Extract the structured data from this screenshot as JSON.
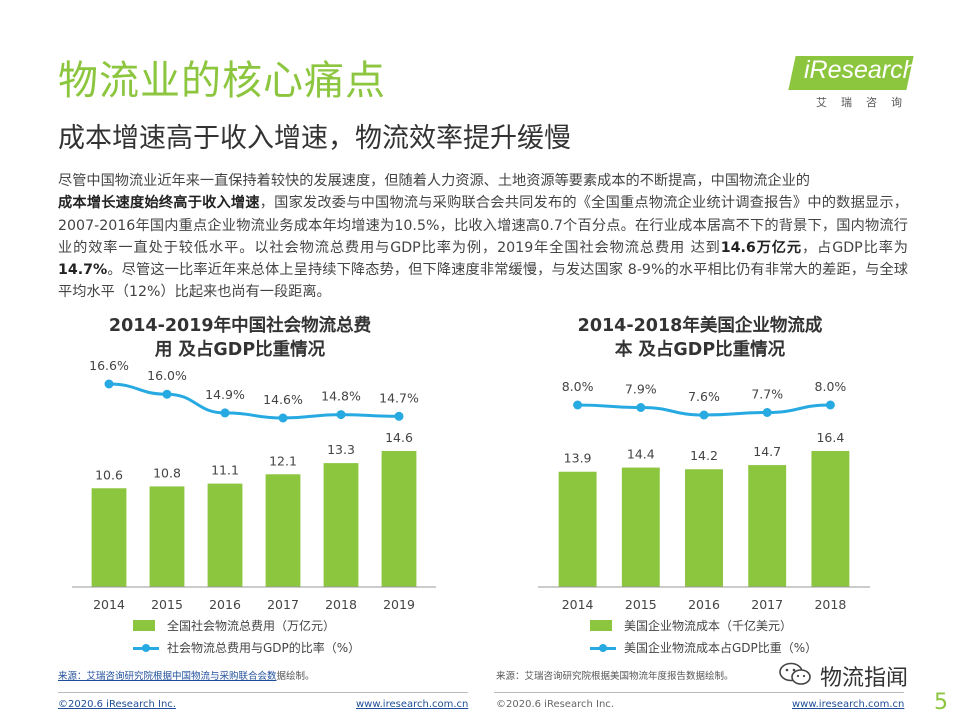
{
  "header": {
    "title": "物流业的核心痛点",
    "subtitle": "成本增速高于收入增速，物流效率提升缓慢"
  },
  "logo": {
    "text": "iResearch",
    "sub": "艾瑞咨询"
  },
  "paragraph": {
    "p1": "尽管中国物流业近年来一直保持着较快的发展速度，但随着人力资源、土地资源等要素成本的不断提高，中国物流企业的",
    "b1": "成本增长速度始终高于收入增速",
    "p2": "，国家发改委与中国物流与采购联合会共同发布的《全国重点物流企业统计调查报告》中的数据显示，2007-2016年国内重点企业物流业务成本年均增速为10.5%，比收入增速高0.7个百分点。在行业成本居高不下的背景下，国内物流行业的效率一直处于较低水平。以社会物流总费用与GDP比率为例，2019年全国社会物流总费用 达到",
    "b2": "14.6万亿元",
    "p3": "，占GDP比率为",
    "b3": "14.7%",
    "p4": "。尽管这一比率近年来总体上呈持续下降态势，但下降速度非常缓慢，与发达国家 8-9%的水平相比仍有非常大的差距，与全球平均水平（12%）比起来也尚有一段距离。"
  },
  "chart_data": [
    {
      "type": "bar",
      "title": "2014-2019年中国社会物流总费用 及占GDP比重情况",
      "title_line1": "2014-2019年中国社会物流总费",
      "title_line2": "用 及占GDP比重情况",
      "categories": [
        "2014",
        "2015",
        "2016",
        "2017",
        "2018",
        "2019"
      ],
      "series": [
        {
          "name": "全国社会物流总费用（万亿元）",
          "type": "bar",
          "values": [
            10.6,
            10.8,
            11.1,
            12.1,
            13.3,
            14.6
          ],
          "labels": [
            "10.6",
            "10.8",
            "11.1",
            "12.1",
            "13.3",
            "14.6"
          ]
        },
        {
          "name": "社会物流总费用与GDP的比率（%）",
          "type": "line",
          "values": [
            16.6,
            16.0,
            14.9,
            14.6,
            14.8,
            14.7
          ],
          "labels": [
            "16.6%",
            "16.0%",
            "14.9%",
            "14.6%",
            "14.8%",
            "14.7%"
          ]
        }
      ],
      "grid": false,
      "legend": "bottom"
    },
    {
      "type": "bar",
      "title": "2014-2018年美国企业物流成本 及占GDP比重情况",
      "title_line1": "2014-2018年美国企业物流成",
      "title_line2": "本 及占GDP比重情况",
      "categories": [
        "2014",
        "2015",
        "2016",
        "2017",
        "2018"
      ],
      "series": [
        {
          "name": "美国企业物流成本（千亿美元）",
          "type": "bar",
          "values": [
            13.9,
            14.4,
            14.2,
            14.7,
            16.4
          ],
          "labels": [
            "13.9",
            "14.4",
            "14.2",
            "14.7",
            "16.4"
          ]
        },
        {
          "name": "美国企业物流成本占GDP比重（%）",
          "type": "line",
          "values": [
            8.0,
            7.9,
            7.6,
            7.7,
            8.0
          ],
          "labels": [
            "8.0%",
            "7.9%",
            "7.6%",
            "7.7%",
            "8.0%"
          ]
        }
      ],
      "grid": false,
      "legend": "bottom"
    }
  ],
  "sources": {
    "left_prefix": "来源：艾瑞咨询研究院根据中国物流与采购联合会数",
    "left_suffix": "据绘制。",
    "right": "来源：艾瑞咨询研究院根据美国物流年度报告数据绘制。"
  },
  "footer": {
    "copyright_left": "©2020.6 iResearch Inc.",
    "url_left": "www.iresearch.com.cn",
    "copyright_right": "©2020.6 iResearch Inc.",
    "url_right": "www.iresearch.com.cn",
    "page": "5"
  },
  "watermark": {
    "text": "物流指闻",
    "icon": "wechat-icon"
  },
  "colors": {
    "accent": "#8cc63f",
    "line": "#27a9e1",
    "link": "#1f4e9a"
  }
}
